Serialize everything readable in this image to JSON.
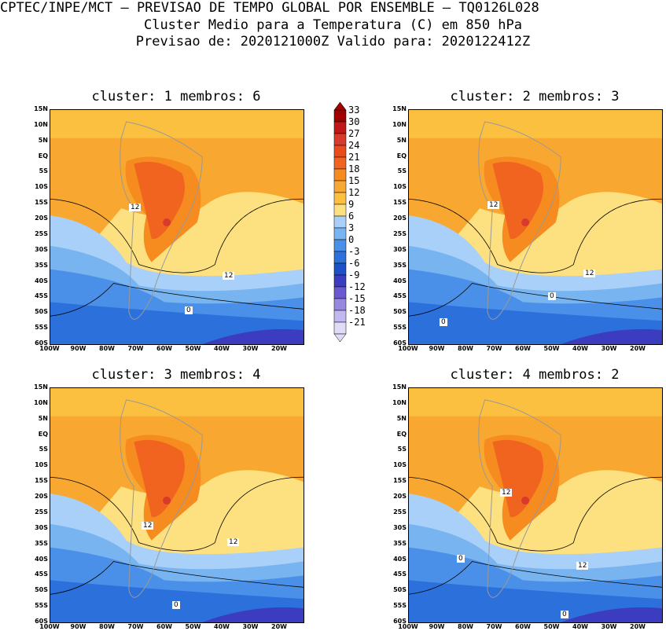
{
  "header": {
    "line1": "CPTEC/INPE/MCT – PREVISAO DE TEMPO GLOBAL POR ENSEMBLE – TQ0126L028",
    "line2": "Cluster Medio para a Temperatura (C) em 850 hPa",
    "line3": "Previsao de: 2020121000Z   Valido para: 2020122412Z"
  },
  "panels": [
    {
      "title": "cluster: 1   membros: 6",
      "contour_labels": [
        "12",
        "12",
        "0"
      ]
    },
    {
      "title": "cluster: 2   membros: 3",
      "contour_labels": [
        "12",
        "12",
        "0",
        "0"
      ]
    },
    {
      "title": "cluster: 3   membros: 4",
      "contour_labels": [
        "12",
        "12",
        "0"
      ]
    },
    {
      "title": "cluster: 4   membros: 2",
      "contour_labels": [
        "12",
        "12",
        "0",
        "0"
      ]
    }
  ],
  "lat_labels": [
    "15N",
    "10N",
    "5N",
    "EQ",
    "5S",
    "10S",
    "15S",
    "20S",
    "25S",
    "30S",
    "35S",
    "40S",
    "45S",
    "50S",
    "55S",
    "60S"
  ],
  "lon_labels": [
    "100W",
    "90W",
    "80W",
    "70W",
    "60W",
    "50W",
    "40W",
    "30W",
    "20W"
  ],
  "colorbar": {
    "levels": [
      "33",
      "30",
      "27",
      "24",
      "21",
      "18",
      "15",
      "12",
      "9",
      "6",
      "3",
      "0",
      "-3",
      "-6",
      "-9",
      "-12",
      "-15",
      "-18",
      "-21"
    ],
    "colors": [
      "#a00000",
      "#c01818",
      "#d83a2c",
      "#e84c1c",
      "#f06420",
      "#f68c20",
      "#f8a830",
      "#fbc040",
      "#fde080",
      "#a8d0f8",
      "#78b4f0",
      "#4a90e8",
      "#2c70dc",
      "#1e50c8",
      "#3c3cc0",
      "#6a5ad0",
      "#9a88e0",
      "#c0b8f0",
      "#e0dcf8"
    ]
  }
}
